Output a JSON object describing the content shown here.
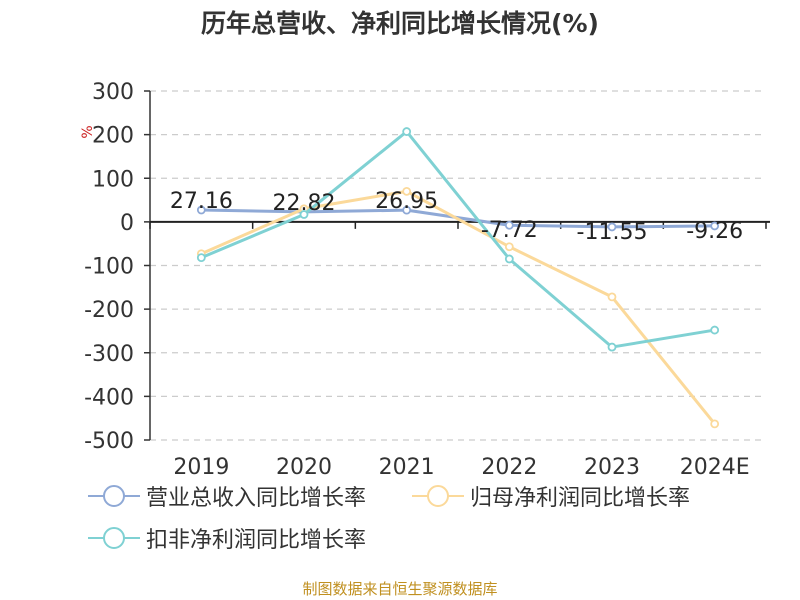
{
  "chart_data": {
    "type": "line",
    "title": "历年总营收、净利同比增长情况(%)",
    "ylabel": "%",
    "categories": [
      "2019",
      "2020",
      "2021",
      "2022",
      "2023",
      "2024E"
    ],
    "ylim": [
      -500,
      300
    ],
    "yticks": [
      300,
      200,
      100,
      0,
      -100,
      -200,
      -300,
      -400,
      -500
    ],
    "grid": true,
    "legend_position": "bottom-left",
    "series": [
      {
        "name": "营业总收入同比增长率",
        "color": "#8fa9d6",
        "values": [
          27.16,
          22.82,
          26.95,
          -7.72,
          -11.55,
          -9.26
        ],
        "labels": [
          "27.16",
          "22.82",
          "26.95",
          "-7.72",
          "-11.55",
          "-9.26"
        ]
      },
      {
        "name": "归母净利润同比增长率",
        "color": "#fbd99a",
        "values": [
          -73,
          30,
          70,
          -57,
          -172,
          -463
        ]
      },
      {
        "name": "扣非净利润同比增长率",
        "color": "#7fd1d3",
        "values": [
          -82,
          17,
          207,
          -85,
          -287,
          -248
        ]
      }
    ]
  },
  "footer": "制图数据来自恒生聚源数据库"
}
